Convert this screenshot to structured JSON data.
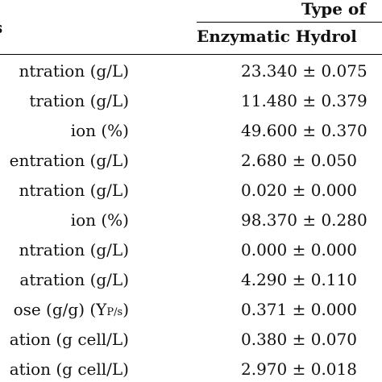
{
  "header": {
    "left_fragment": "s",
    "group_title": "Type of",
    "column_title": "Enzymatic Hydrol"
  },
  "rows": [
    {
      "label": "ntration (g/L)",
      "value": "23.340 ± 0.075"
    },
    {
      "label": "tration (g/L)",
      "value": "11.480 ± 0.379"
    },
    {
      "label": "ion (%)",
      "value": "49.600 ± 0.370"
    },
    {
      "label": "entration (g/L)",
      "value": "2.680 ± 0.050"
    },
    {
      "label": "ntration (g/L)",
      "value": "0.020 ± 0.000"
    },
    {
      "label": "ion (%)",
      "value": "98.370 ± 0.280"
    },
    {
      "label": "ntration (g/L)",
      "value": "0.000 ± 0.000"
    },
    {
      "label": "atration (g/L)",
      "value": "4.290 ± 0.110"
    },
    {
      "label": "ose (g/g) (Y",
      "label_sub": "P/s",
      "label_tail": ")",
      "value": "0.371 ± 0.000"
    },
    {
      "label": "ation (g cell/L)",
      "value": "0.380 ± 0.070"
    },
    {
      "label": "ation (g cell/L)",
      "value": "2.970 ± 0.018"
    }
  ]
}
